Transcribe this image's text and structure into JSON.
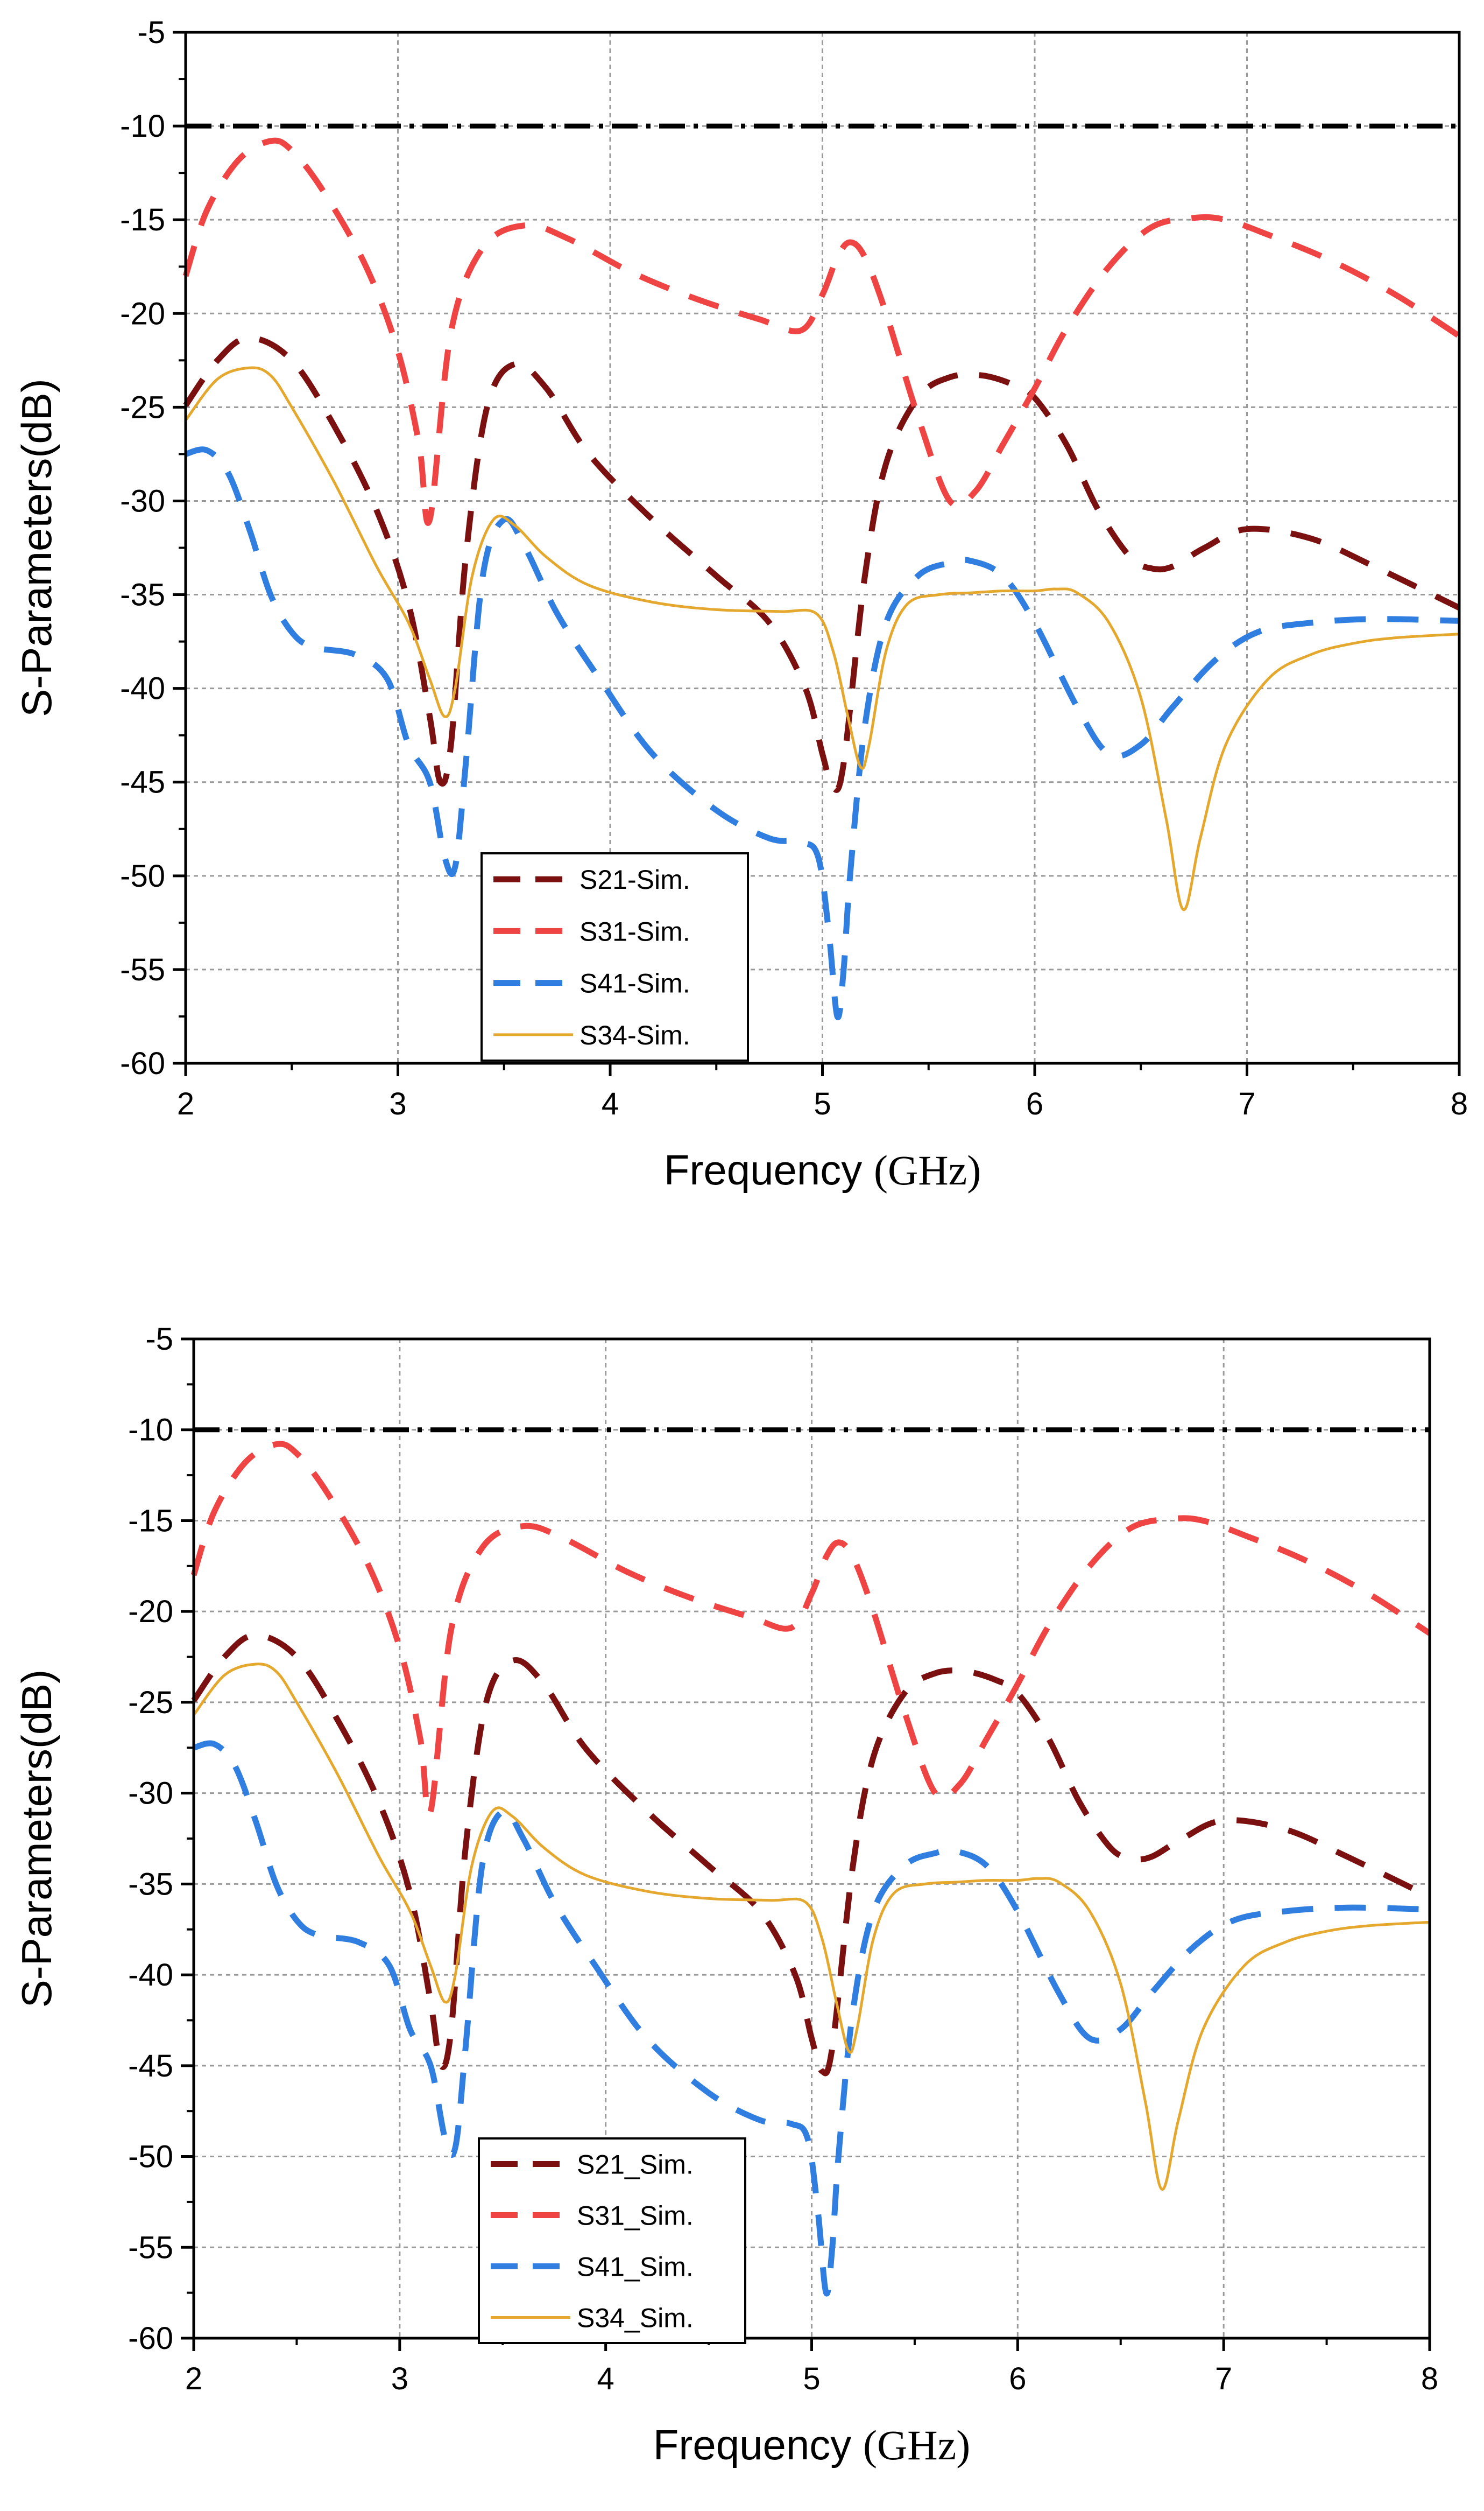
{
  "chart_data": [
    {
      "type": "line",
      "xlabel": "Frequency",
      "xunit": "(GHz)",
      "ylabel": "S-Parameters(dB)",
      "xlim": [
        2,
        8
      ],
      "ylim": [
        -60,
        -5
      ],
      "xticks": [
        "2",
        "3",
        "4",
        "5",
        "6",
        "7",
        "8"
      ],
      "yticks": [
        "-5",
        "-10",
        "-15",
        "-20",
        "-25",
        "-30",
        "-35",
        "-40",
        "-45",
        "-50",
        "-55",
        "-60"
      ],
      "grid": true,
      "legend_position": "bottom-left",
      "reference_line": {
        "y": -10,
        "color": "#000000",
        "style": "dash-dot"
      },
      "series": [
        {
          "name": "S21-Sim.",
          "color": "#7b1010",
          "style": "dashed",
          "x": [
            2.0,
            2.15,
            2.3,
            2.5,
            2.7,
            2.9,
            3.05,
            3.15,
            3.2,
            3.25,
            3.32,
            3.42,
            3.55,
            3.7,
            3.9,
            4.2,
            4.5,
            4.75,
            4.92,
            5.0,
            5.05,
            5.1,
            5.2,
            5.3,
            5.45,
            5.6,
            5.75,
            5.9,
            6.0,
            6.15,
            6.3,
            6.45,
            6.55,
            6.65,
            6.8,
            7.0,
            7.3,
            7.6,
            8.0
          ],
          "y": [
            -24.9,
            -22.5,
            -21.3,
            -22.5,
            -26.0,
            -30.5,
            -35.5,
            -41.5,
            -45.0,
            -43.0,
            -33.0,
            -25.0,
            -22.7,
            -24.0,
            -27.5,
            -31.0,
            -34.0,
            -36.5,
            -40.0,
            -43.5,
            -45.3,
            -44.0,
            -34.0,
            -28.0,
            -24.5,
            -23.4,
            -23.3,
            -23.8,
            -24.5,
            -27.0,
            -30.5,
            -33.0,
            -33.6,
            -33.5,
            -32.5,
            -31.5,
            -32.0,
            -33.5,
            -35.7
          ]
        },
        {
          "name": "S31-Sim.",
          "color": "#ef4444",
          "style": "dashed",
          "x": [
            2.0,
            2.1,
            2.25,
            2.4,
            2.5,
            2.65,
            2.85,
            3.0,
            3.1,
            3.15,
            3.25,
            3.4,
            3.6,
            3.8,
            4.1,
            4.4,
            4.7,
            4.9,
            5.0,
            5.07,
            5.13,
            5.2,
            5.3,
            5.45,
            5.6,
            5.72,
            5.85,
            6.0,
            6.15,
            6.35,
            6.55,
            6.75,
            6.9,
            7.1,
            7.4,
            7.7,
            8.0
          ],
          "y": [
            -18.0,
            -14.5,
            -11.8,
            -10.8,
            -11.3,
            -13.5,
            -17.5,
            -22.0,
            -27.0,
            -31.0,
            -21.0,
            -16.5,
            -15.3,
            -16.0,
            -17.8,
            -19.2,
            -20.3,
            -20.9,
            -19.0,
            -17.0,
            -16.2,
            -17.0,
            -20.0,
            -25.5,
            -30.0,
            -29.5,
            -27.0,
            -24.0,
            -20.8,
            -17.5,
            -15.4,
            -14.9,
            -15.0,
            -15.8,
            -17.2,
            -19.0,
            -21.2
          ]
        },
        {
          "name": "S41-Sim.",
          "color": "#2f7ee0",
          "style": "dashed",
          "x": [
            2.0,
            2.1,
            2.2,
            2.3,
            2.4,
            2.5,
            2.6,
            2.8,
            2.95,
            3.05,
            3.15,
            3.22,
            3.27,
            3.32,
            3.4,
            3.5,
            3.6,
            3.75,
            3.95,
            4.2,
            4.5,
            4.75,
            4.9,
            4.98,
            5.03,
            5.07,
            5.1,
            5.13,
            5.2,
            5.3,
            5.45,
            5.6,
            5.7,
            5.85,
            6.0,
            6.2,
            6.35,
            6.5,
            6.65,
            6.85,
            7.05,
            7.3,
            7.6,
            8.0
          ],
          "y": [
            -27.5,
            -27.3,
            -28.5,
            -31.5,
            -35.0,
            -37.0,
            -37.8,
            -38.2,
            -39.5,
            -43.0,
            -45.0,
            -49.0,
            -49.5,
            -44.0,
            -34.0,
            -31.0,
            -32.5,
            -36.0,
            -39.5,
            -43.5,
            -46.5,
            -48.0,
            -48.2,
            -49.0,
            -53.0,
            -57.5,
            -55.0,
            -50.0,
            -42.0,
            -36.5,
            -34.0,
            -33.3,
            -33.2,
            -34.0,
            -36.5,
            -41.0,
            -43.5,
            -43.0,
            -41.0,
            -38.5,
            -37.0,
            -36.5,
            -36.3,
            -36.4
          ]
        },
        {
          "name": "S34-Sim.",
          "color": "#e5a82e",
          "style": "solid",
          "x": [
            2.0,
            2.15,
            2.3,
            2.4,
            2.5,
            2.7,
            2.9,
            3.05,
            3.15,
            3.22,
            3.27,
            3.35,
            3.45,
            3.55,
            3.7,
            3.9,
            4.2,
            4.5,
            4.8,
            4.97,
            5.05,
            5.12,
            5.18,
            5.22,
            5.3,
            5.4,
            5.55,
            5.7,
            5.85,
            6.0,
            6.1,
            6.2,
            6.35,
            6.5,
            6.62,
            6.7,
            6.78,
            6.9,
            7.1,
            7.3,
            7.5,
            7.7,
            8.0
          ],
          "y": [
            -25.7,
            -23.5,
            -22.9,
            -23.3,
            -25.0,
            -29.0,
            -33.5,
            -36.5,
            -39.5,
            -41.5,
            -40.0,
            -34.0,
            -31.0,
            -31.3,
            -33.0,
            -34.5,
            -35.4,
            -35.8,
            -35.9,
            -36.0,
            -38.0,
            -41.5,
            -44.2,
            -43.0,
            -38.0,
            -35.5,
            -35.0,
            -34.9,
            -34.8,
            -34.8,
            -34.7,
            -34.9,
            -36.5,
            -40.5,
            -47.0,
            -51.8,
            -48.0,
            -43.0,
            -39.5,
            -38.2,
            -37.6,
            -37.3,
            -37.1
          ]
        }
      ]
    },
    {
      "type": "line",
      "xlabel": "Frequency",
      "xunit": "(GHz)",
      "ylabel": "S-Parameters(dB)",
      "xlim": [
        2,
        8
      ],
      "ylim": [
        -60,
        -5
      ],
      "xticks": [
        "2",
        "3",
        "4",
        "5",
        "6",
        "7",
        "8"
      ],
      "yticks": [
        "-5",
        "-10",
        "-15",
        "-20",
        "-25",
        "-30",
        "-35",
        "-40",
        "-45",
        "-50",
        "-55",
        "-60"
      ],
      "grid": true,
      "legend_position": "bottom-left",
      "reference_line": {
        "y": -10,
        "color": "#000000",
        "style": "dash-dot"
      },
      "series": [
        {
          "name": "S21_Sim.",
          "color": "#7b1010",
          "style": "dashed",
          "x": [
            2.0,
            2.15,
            2.3,
            2.5,
            2.7,
            2.9,
            3.05,
            3.15,
            3.2,
            3.25,
            3.32,
            3.42,
            3.55,
            3.7,
            3.9,
            4.2,
            4.5,
            4.75,
            4.92,
            5.0,
            5.05,
            5.1,
            5.2,
            5.3,
            5.45,
            5.6,
            5.75,
            5.9,
            6.0,
            6.15,
            6.3,
            6.45,
            6.55,
            6.65,
            6.8,
            7.0,
            7.3,
            7.6,
            8.0
          ],
          "y": [
            -24.9,
            -22.5,
            -21.3,
            -22.5,
            -26.0,
            -30.5,
            -35.5,
            -41.5,
            -45.0,
            -43.0,
            -33.0,
            -25.0,
            -22.7,
            -24.0,
            -27.5,
            -31.0,
            -34.0,
            -36.5,
            -40.0,
            -43.5,
            -45.3,
            -44.0,
            -34.0,
            -28.0,
            -24.5,
            -23.4,
            -23.3,
            -23.8,
            -24.5,
            -27.0,
            -30.5,
            -33.0,
            -33.6,
            -33.5,
            -32.5,
            -31.5,
            -32.0,
            -33.5,
            -35.7
          ]
        },
        {
          "name": "S31_Sim.",
          "color": "#ef4444",
          "style": "dashed",
          "x": [
            2.0,
            2.1,
            2.25,
            2.4,
            2.5,
            2.65,
            2.85,
            3.0,
            3.1,
            3.15,
            3.25,
            3.4,
            3.6,
            3.8,
            4.1,
            4.4,
            4.7,
            4.9,
            5.0,
            5.07,
            5.13,
            5.2,
            5.3,
            5.45,
            5.6,
            5.72,
            5.85,
            6.0,
            6.15,
            6.35,
            6.55,
            6.75,
            6.9,
            7.1,
            7.4,
            7.7,
            8.0
          ],
          "y": [
            -18.0,
            -14.5,
            -11.8,
            -10.8,
            -11.3,
            -13.5,
            -17.5,
            -22.0,
            -27.0,
            -31.0,
            -21.0,
            -16.5,
            -15.3,
            -16.0,
            -17.8,
            -19.2,
            -20.3,
            -20.9,
            -19.0,
            -17.0,
            -16.2,
            -17.0,
            -20.0,
            -25.5,
            -30.0,
            -29.5,
            -27.0,
            -24.0,
            -20.8,
            -17.5,
            -15.4,
            -14.9,
            -15.0,
            -15.8,
            -17.2,
            -19.0,
            -21.2
          ]
        },
        {
          "name": "S41_Sim.",
          "color": "#2f7ee0",
          "style": "dashed",
          "x": [
            2.0,
            2.1,
            2.2,
            2.3,
            2.4,
            2.5,
            2.6,
            2.8,
            2.95,
            3.05,
            3.15,
            3.22,
            3.27,
            3.32,
            3.4,
            3.5,
            3.6,
            3.75,
            3.95,
            4.2,
            4.5,
            4.75,
            4.9,
            4.98,
            5.03,
            5.07,
            5.1,
            5.13,
            5.2,
            5.3,
            5.45,
            5.6,
            5.7,
            5.85,
            6.0,
            6.2,
            6.35,
            6.5,
            6.65,
            6.85,
            7.05,
            7.3,
            7.6,
            8.0
          ],
          "y": [
            -27.5,
            -27.3,
            -28.5,
            -31.5,
            -35.0,
            -37.0,
            -37.8,
            -38.2,
            -39.5,
            -43.0,
            -45.0,
            -49.0,
            -49.5,
            -44.0,
            -34.0,
            -31.0,
            -32.5,
            -36.0,
            -39.5,
            -43.5,
            -46.5,
            -48.0,
            -48.2,
            -49.0,
            -53.0,
            -57.5,
            -55.0,
            -50.0,
            -42.0,
            -36.5,
            -34.0,
            -33.3,
            -33.2,
            -34.0,
            -36.5,
            -41.0,
            -43.5,
            -43.0,
            -41.0,
            -38.5,
            -37.0,
            -36.5,
            -36.3,
            -36.4
          ]
        },
        {
          "name": "S34_Sim.",
          "color": "#e5a82e",
          "style": "solid",
          "x": [
            2.0,
            2.15,
            2.3,
            2.4,
            2.5,
            2.7,
            2.9,
            3.05,
            3.15,
            3.22,
            3.27,
            3.35,
            3.45,
            3.55,
            3.7,
            3.9,
            4.2,
            4.5,
            4.8,
            4.97,
            5.05,
            5.12,
            5.18,
            5.22,
            5.3,
            5.4,
            5.55,
            5.7,
            5.85,
            6.0,
            6.1,
            6.2,
            6.35,
            6.5,
            6.62,
            6.7,
            6.78,
            6.9,
            7.1,
            7.3,
            7.5,
            7.7,
            8.0
          ],
          "y": [
            -25.7,
            -23.5,
            -22.9,
            -23.3,
            -25.0,
            -29.0,
            -33.5,
            -36.5,
            -39.5,
            -41.5,
            -40.0,
            -34.0,
            -31.0,
            -31.3,
            -33.0,
            -34.5,
            -35.4,
            -35.8,
            -35.9,
            -36.0,
            -38.0,
            -41.5,
            -44.2,
            -43.0,
            -38.0,
            -35.5,
            -35.0,
            -34.9,
            -34.8,
            -34.8,
            -34.7,
            -34.9,
            -36.5,
            -40.5,
            -47.0,
            -51.8,
            -48.0,
            -43.0,
            -39.5,
            -38.2,
            -37.6,
            -37.3,
            -37.1
          ]
        }
      ]
    }
  ]
}
